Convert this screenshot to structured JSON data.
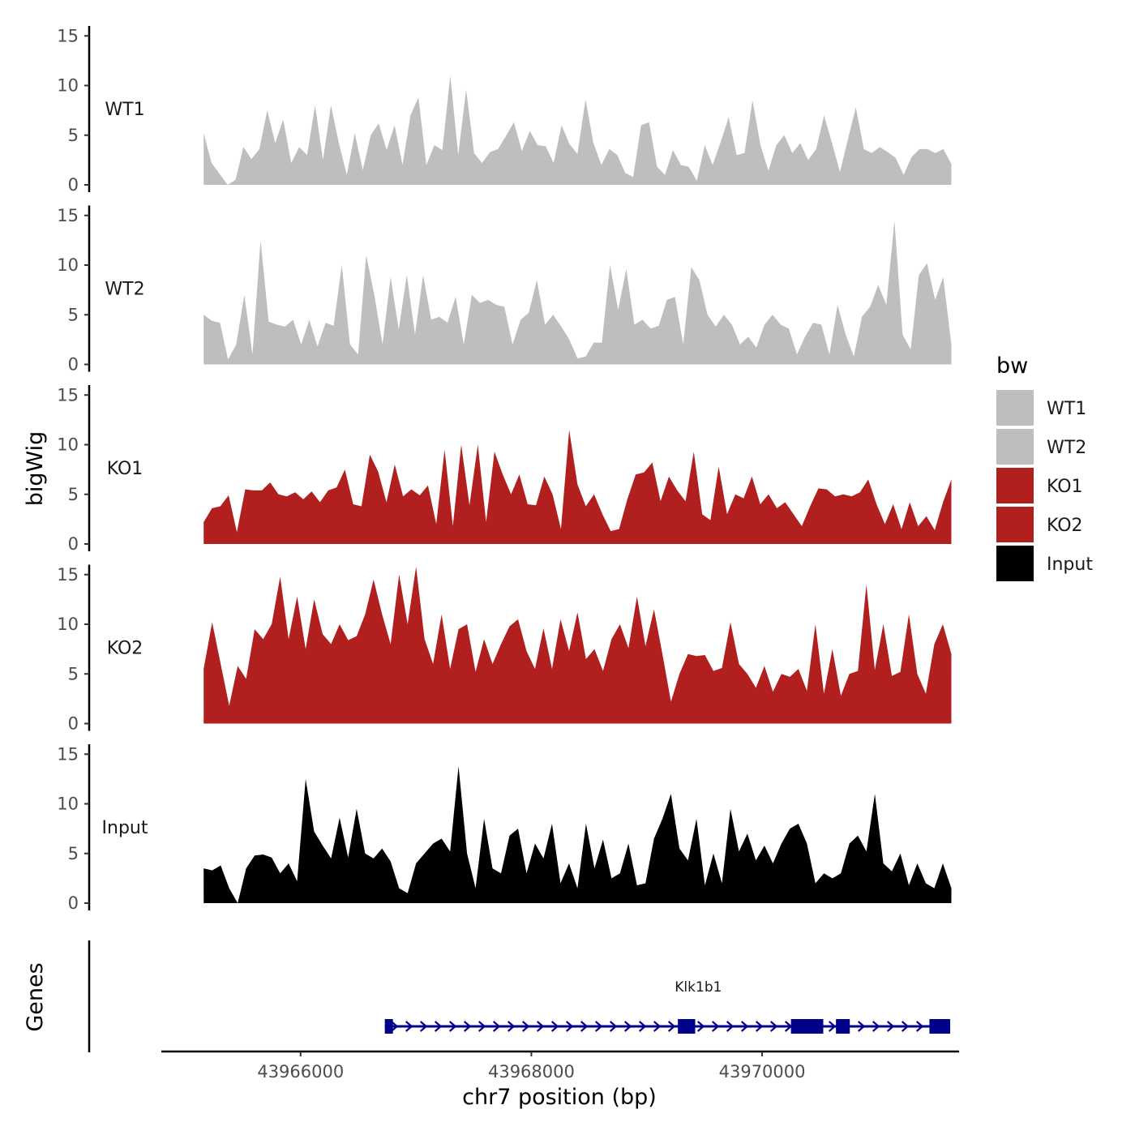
{
  "chart_data": {
    "type": "area",
    "title": "",
    "xlabel": "chr7 position (bp)",
    "ylabel": "bigWig",
    "xlim": [
      43964800,
      43971700
    ],
    "ylim": [
      0,
      16
    ],
    "yticks": [
      0,
      5,
      10,
      15
    ],
    "xticks": [
      43966000,
      43968000,
      43970000
    ],
    "xtick_labels": [
      "43966000",
      "43968000",
      "43970000"
    ],
    "data_range": [
      43965160,
      43971640
    ],
    "legend": {
      "title": "bw",
      "position": "right",
      "entries": [
        {
          "label": "WT1",
          "color": "#bebebe"
        },
        {
          "label": "WT2",
          "color": "#bebebe"
        },
        {
          "label": "KO1",
          "color": "#b21f1f"
        },
        {
          "label": "KO2",
          "color": "#b21f1f"
        },
        {
          "label": "Input",
          "color": "#000000"
        }
      ]
    },
    "series": [
      {
        "name": "WT1",
        "color": "#bebebe",
        "values": [
          5.2,
          2.2,
          1.1,
          0.0,
          0.5,
          3.8,
          2.6,
          3.6,
          7.5,
          4.2,
          6.6,
          2.2,
          3.8,
          3.0,
          8.0,
          2.5,
          8.0,
          4.2,
          1.0,
          5.2,
          1.5,
          5.0,
          6.2,
          3.5,
          6.0,
          2.0,
          7.0,
          8.8,
          2.0,
          4.0,
          3.5,
          11.0,
          3.0,
          9.6,
          3.2,
          2.2,
          3.3,
          3.6,
          4.9,
          6.3,
          3.4,
          5.4,
          4.0,
          3.9,
          2.2,
          6.0,
          4.1,
          3.1,
          8.6,
          4.2,
          2.0,
          3.6,
          3.0,
          1.2,
          0.8,
          6.0,
          6.3,
          1.8,
          1.0,
          3.5,
          2.0,
          1.8,
          0.4,
          4.0,
          2.0,
          4.3,
          6.8,
          3.0,
          3.2,
          8.5,
          4.0,
          1.4,
          4.0,
          5.0,
          3.2,
          4.2,
          2.5,
          3.6,
          7.0,
          4.2,
          1.3,
          4.6,
          7.8,
          3.6,
          3.2,
          3.8,
          3.3,
          2.7,
          1.0,
          2.8,
          3.6,
          3.6,
          3.2,
          3.6,
          2.1
        ]
      },
      {
        "name": "WT2",
        "color": "#bebebe",
        "values": [
          5.0,
          4.4,
          4.2,
          0.5,
          2.0,
          7.0,
          1.0,
          12.5,
          4.3,
          4.0,
          3.8,
          4.5,
          2.0,
          4.5,
          1.8,
          4.2,
          3.9,
          10.0,
          2.0,
          1.0,
          11.0,
          7.0,
          2.0,
          8.8,
          3.5,
          9.0,
          3.0,
          9.0,
          4.5,
          4.8,
          4.2,
          6.8,
          2.0,
          7.0,
          6.2,
          6.5,
          6.0,
          5.8,
          2.0,
          4.5,
          5.2,
          8.5,
          4.0,
          5.0,
          3.8,
          2.5,
          0.6,
          0.8,
          2.2,
          2.2,
          10.0,
          5.5,
          9.6,
          4.0,
          4.5,
          3.6,
          3.9,
          6.5,
          6.8,
          2.0,
          9.8,
          8.5,
          5.0,
          3.8,
          5.0,
          4.0,
          2.0,
          2.8,
          1.7,
          4.0,
          5.0,
          4.0,
          3.6,
          1.0,
          2.8,
          4.2,
          4.0,
          1.0,
          6.0,
          3.0,
          0.8,
          4.8,
          5.8,
          8.0,
          6.0,
          14.5,
          3.0,
          1.5,
          9.0,
          10.2,
          6.5,
          8.8,
          2.0
        ]
      },
      {
        "name": "KO1",
        "color": "#b21f1f",
        "values": [
          2.2,
          3.6,
          3.8,
          4.9,
          1.2,
          5.5,
          5.4,
          5.4,
          6.2,
          5.0,
          4.8,
          5.2,
          4.5,
          5.3,
          4.2,
          5.4,
          5.7,
          7.5,
          4.0,
          3.8,
          9.0,
          7.3,
          4.2,
          8.0,
          4.8,
          5.5,
          4.9,
          5.9,
          2.0,
          9.5,
          1.8,
          10.0,
          3.9,
          10.0,
          2.2,
          9.3,
          7.0,
          5.0,
          7.0,
          4.0,
          3.9,
          6.8,
          5.0,
          1.5,
          11.5,
          6.0,
          3.8,
          5.0,
          3.0,
          1.3,
          1.5,
          4.5,
          7.0,
          7.2,
          8.2,
          4.3,
          6.8,
          5.4,
          4.3,
          9.3,
          3.0,
          2.4,
          7.8,
          3.0,
          5.0,
          4.6,
          6.8,
          4.0,
          5.0,
          3.6,
          4.2,
          3.0,
          1.8,
          3.8,
          5.6,
          5.5,
          4.8,
          5.0,
          4.8,
          5.2,
          6.5,
          4.0,
          2.0,
          4.0,
          1.5,
          4.2,
          1.8,
          2.8,
          1.4,
          4.2,
          6.5
        ]
      },
      {
        "name": "KO2",
        "color": "#b21f1f",
        "values": [
          5.5,
          10.2,
          6.0,
          1.8,
          5.8,
          4.5,
          9.5,
          8.5,
          10.0,
          14.8,
          8.5,
          12.8,
          7.5,
          12.5,
          9.0,
          8.0,
          10.0,
          8.4,
          8.8,
          11.0,
          14.5,
          11.0,
          8.0,
          15.0,
          10.0,
          15.8,
          8.5,
          6.0,
          11.0,
          5.5,
          9.5,
          10.0,
          5.2,
          8.5,
          6.0,
          8.0,
          9.8,
          10.5,
          7.3,
          5.5,
          9.6,
          5.5,
          10.5,
          7.3,
          11.2,
          6.5,
          7.5,
          5.3,
          8.5,
          10.0,
          7.6,
          12.8,
          7.8,
          11.5,
          7.0,
          2.2,
          5.0,
          7.0,
          6.8,
          6.9,
          5.3,
          5.6,
          10.2,
          6.0,
          5.0,
          3.6,
          5.8,
          3.2,
          5.0,
          4.7,
          5.5,
          3.3,
          10.0,
          3.0,
          7.5,
          2.8,
          5.0,
          5.3,
          14.0,
          5.4,
          10.0,
          4.8,
          5.2,
          11.0,
          5.0,
          3.0,
          8.0,
          10.0,
          7.0
        ]
      },
      {
        "name": "Input",
        "color": "#000000",
        "values": [
          3.5,
          3.3,
          3.8,
          1.5,
          0.0,
          3.5,
          4.8,
          4.9,
          4.6,
          3.0,
          4.0,
          2.2,
          12.5,
          7.2,
          5.8,
          4.5,
          8.6,
          4.6,
          9.5,
          5.0,
          4.5,
          5.5,
          4.2,
          1.5,
          1.0,
          4.0,
          5.0,
          6.0,
          6.5,
          5.2,
          13.8,
          5.0,
          1.5,
          8.5,
          3.5,
          3.0,
          6.8,
          7.5,
          3.0,
          6.0,
          4.5,
          8.0,
          2.0,
          4.0,
          1.5,
          8.0,
          3.5,
          6.4,
          2.5,
          3.0,
          6.0,
          1.8,
          2.0,
          6.5,
          8.5,
          11.0,
          5.5,
          4.3,
          8.5,
          1.8,
          5.0,
          2.0,
          9.5,
          5.2,
          7.0,
          4.3,
          5.8,
          4.0,
          6.0,
          7.5,
          8.0,
          6.0,
          2.0,
          3.0,
          2.5,
          3.0,
          6.0,
          6.8,
          5.2,
          11.0,
          4.0,
          3.2,
          5.0,
          1.8,
          4.0,
          2.0,
          1.5,
          4.0,
          1.5
        ]
      }
    ],
    "gene_track": {
      "label": "Genes",
      "gene": "Klk1b1",
      "strand": "+",
      "color": "#00008b",
      "start": 43966730,
      "end": 43971630,
      "exons": [
        [
          43966730,
          43966800
        ],
        [
          43969270,
          43969420
        ],
        [
          43970250,
          43970530
        ],
        [
          43970640,
          43970760
        ],
        [
          43971450,
          43971630
        ]
      ]
    }
  }
}
